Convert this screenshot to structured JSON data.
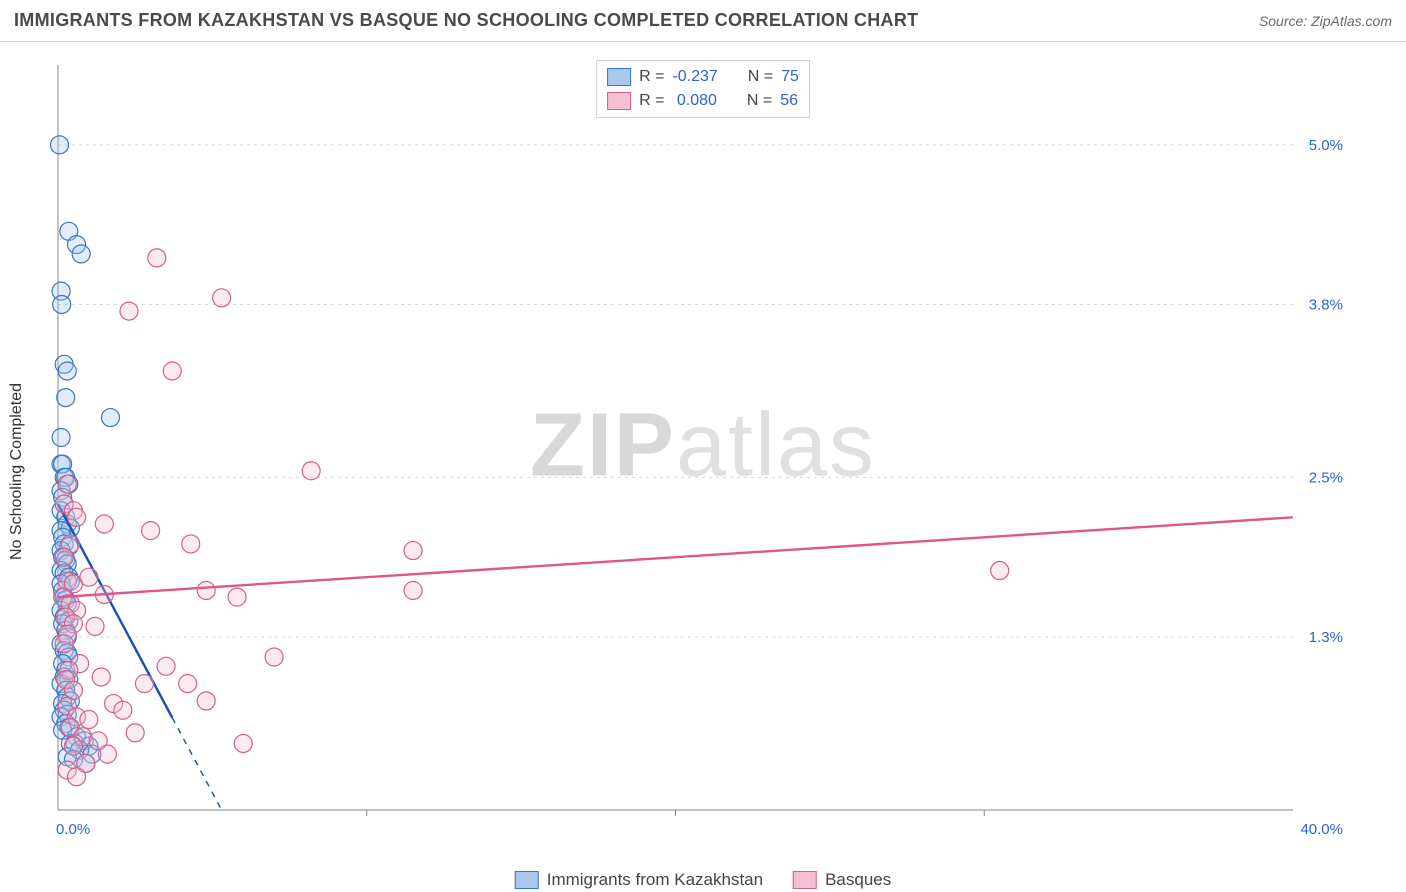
{
  "title": "IMMIGRANTS FROM KAZAKHSTAN VS BASQUE NO SCHOOLING COMPLETED CORRELATION CHART",
  "source_label": "Source: ",
  "source_value": "ZipAtlas.com",
  "ylabel": "No Schooling Completed",
  "watermark": {
    "bold": "ZIP",
    "rest": "atlas"
  },
  "chart": {
    "type": "scatter-with-regression",
    "background_color": "#ffffff",
    "xlim": [
      0,
      40
    ],
    "ylim": [
      0,
      5.6
    ],
    "x_axis_color": "#888888",
    "y_axis_color": "#888888",
    "grid_dash": "3,4",
    "grid_color": "#d8d8d8",
    "tick_label_color": "#2b63d6",
    "y_ticks": [
      {
        "v": 1.3,
        "label": "1.3%"
      },
      {
        "v": 2.5,
        "label": "2.5%"
      },
      {
        "v": 3.8,
        "label": "3.8%"
      },
      {
        "v": 5.0,
        "label": "5.0%"
      }
    ],
    "x_ticks_minor": [
      10,
      20,
      30
    ],
    "x_ticks_labeled": [
      {
        "v": 0,
        "label": "0.0%"
      },
      {
        "v": 40,
        "label": "40.0%"
      }
    ],
    "marker_radius": 9,
    "marker_stroke_width": 1.2,
    "marker_fill_opacity": 0.32,
    "line_width": 2.4
  },
  "series": [
    {
      "key": "kazakhstan",
      "label": "Immigrants from Kazakhstan",
      "color_stroke": "#3a77c2",
      "color_fill": "#a9c8ec",
      "line_color": "#1651b5",
      "R": "-0.237",
      "N": "75",
      "regression": {
        "x1": 0,
        "y1": 2.3,
        "x2": 5.3,
        "y2": 0.0,
        "solid_until_x": 3.7
      },
      "points": [
        [
          0.05,
          5.0
        ],
        [
          0.35,
          4.35
        ],
        [
          0.6,
          4.25
        ],
        [
          0.75,
          4.18
        ],
        [
          0.1,
          3.9
        ],
        [
          0.12,
          3.8
        ],
        [
          0.2,
          3.35
        ],
        [
          0.3,
          3.3
        ],
        [
          0.25,
          3.1
        ],
        [
          1.7,
          2.95
        ],
        [
          0.1,
          2.8
        ],
        [
          0.1,
          2.6
        ],
        [
          0.15,
          2.6
        ],
        [
          0.2,
          2.5
        ],
        [
          0.25,
          2.5
        ],
        [
          0.35,
          2.45
        ],
        [
          0.1,
          2.4
        ],
        [
          0.15,
          2.35
        ],
        [
          0.2,
          2.3
        ],
        [
          0.1,
          2.25
        ],
        [
          0.25,
          2.2
        ],
        [
          0.3,
          2.15
        ],
        [
          0.4,
          2.12
        ],
        [
          0.1,
          2.1
        ],
        [
          0.15,
          2.05
        ],
        [
          0.2,
          2.0
        ],
        [
          0.35,
          1.98
        ],
        [
          0.1,
          1.95
        ],
        [
          0.15,
          1.9
        ],
        [
          0.25,
          1.88
        ],
        [
          0.3,
          1.85
        ],
        [
          0.1,
          1.8
        ],
        [
          0.2,
          1.78
        ],
        [
          0.35,
          1.75
        ],
        [
          0.4,
          1.72
        ],
        [
          0.1,
          1.7
        ],
        [
          0.15,
          1.65
        ],
        [
          0.2,
          1.6
        ],
        [
          0.25,
          1.58
        ],
        [
          0.3,
          1.55
        ],
        [
          0.1,
          1.5
        ],
        [
          0.2,
          1.45
        ],
        [
          0.35,
          1.42
        ],
        [
          0.15,
          1.4
        ],
        [
          0.25,
          1.35
        ],
        [
          0.3,
          1.3
        ],
        [
          0.1,
          1.25
        ],
        [
          0.2,
          1.2
        ],
        [
          0.3,
          1.18
        ],
        [
          0.35,
          1.15
        ],
        [
          0.15,
          1.1
        ],
        [
          0.25,
          1.05
        ],
        [
          0.2,
          1.0
        ],
        [
          0.35,
          0.98
        ],
        [
          0.1,
          0.95
        ],
        [
          0.25,
          0.9
        ],
        [
          0.3,
          0.85
        ],
        [
          0.4,
          0.82
        ],
        [
          0.15,
          0.8
        ],
        [
          0.2,
          0.75
        ],
        [
          0.3,
          0.72
        ],
        [
          0.1,
          0.7
        ],
        [
          0.25,
          0.65
        ],
        [
          0.35,
          0.62
        ],
        [
          0.15,
          0.6
        ],
        [
          0.6,
          0.55
        ],
        [
          0.85,
          0.52
        ],
        [
          0.4,
          0.5
        ],
        [
          0.55,
          0.5
        ],
        [
          1.0,
          0.48
        ],
        [
          0.7,
          0.45
        ],
        [
          1.1,
          0.42
        ],
        [
          0.3,
          0.4
        ],
        [
          0.5,
          0.38
        ],
        [
          0.9,
          0.35
        ]
      ]
    },
    {
      "key": "basques",
      "label": "Basques",
      "color_stroke": "#d65f8a",
      "color_fill": "#f4c0d2",
      "line_color": "#e0558c",
      "R": "0.080",
      "N": "56",
      "regression": {
        "x1": 0,
        "y1": 1.6,
        "x2": 40,
        "y2": 2.2,
        "solid_until_x": 40
      },
      "points": [
        [
          3.2,
          4.15
        ],
        [
          5.3,
          3.85
        ],
        [
          2.3,
          3.75
        ],
        [
          3.7,
          3.3
        ],
        [
          0.3,
          2.45
        ],
        [
          0.2,
          2.3
        ],
        [
          0.5,
          2.25
        ],
        [
          8.2,
          2.55
        ],
        [
          0.6,
          2.2
        ],
        [
          1.5,
          2.15
        ],
        [
          3.0,
          2.1
        ],
        [
          0.4,
          2.0
        ],
        [
          4.3,
          2.0
        ],
        [
          11.5,
          1.95
        ],
        [
          0.2,
          1.9
        ],
        [
          30.5,
          1.8
        ],
        [
          0.3,
          1.72
        ],
        [
          0.5,
          1.7
        ],
        [
          1.0,
          1.75
        ],
        [
          11.5,
          1.65
        ],
        [
          4.8,
          1.65
        ],
        [
          1.5,
          1.62
        ],
        [
          0.15,
          1.6
        ],
        [
          5.8,
          1.6
        ],
        [
          0.4,
          1.55
        ],
        [
          0.6,
          1.5
        ],
        [
          0.25,
          1.45
        ],
        [
          0.5,
          1.4
        ],
        [
          1.2,
          1.38
        ],
        [
          0.3,
          1.32
        ],
        [
          0.2,
          1.25
        ],
        [
          7.0,
          1.15
        ],
        [
          0.7,
          1.1
        ],
        [
          3.5,
          1.08
        ],
        [
          0.35,
          1.05
        ],
        [
          1.4,
          1.0
        ],
        [
          0.25,
          0.98
        ],
        [
          2.8,
          0.95
        ],
        [
          4.2,
          0.95
        ],
        [
          0.5,
          0.9
        ],
        [
          4.8,
          0.82
        ],
        [
          1.8,
          0.8
        ],
        [
          0.3,
          0.78
        ],
        [
          2.1,
          0.75
        ],
        [
          0.6,
          0.7
        ],
        [
          1.0,
          0.68
        ],
        [
          0.4,
          0.62
        ],
        [
          2.5,
          0.58
        ],
        [
          0.8,
          0.55
        ],
        [
          1.3,
          0.52
        ],
        [
          6.0,
          0.5
        ],
        [
          0.5,
          0.48
        ],
        [
          1.6,
          0.42
        ],
        [
          0.9,
          0.35
        ],
        [
          0.3,
          0.3
        ],
        [
          0.6,
          0.25
        ]
      ]
    }
  ]
}
